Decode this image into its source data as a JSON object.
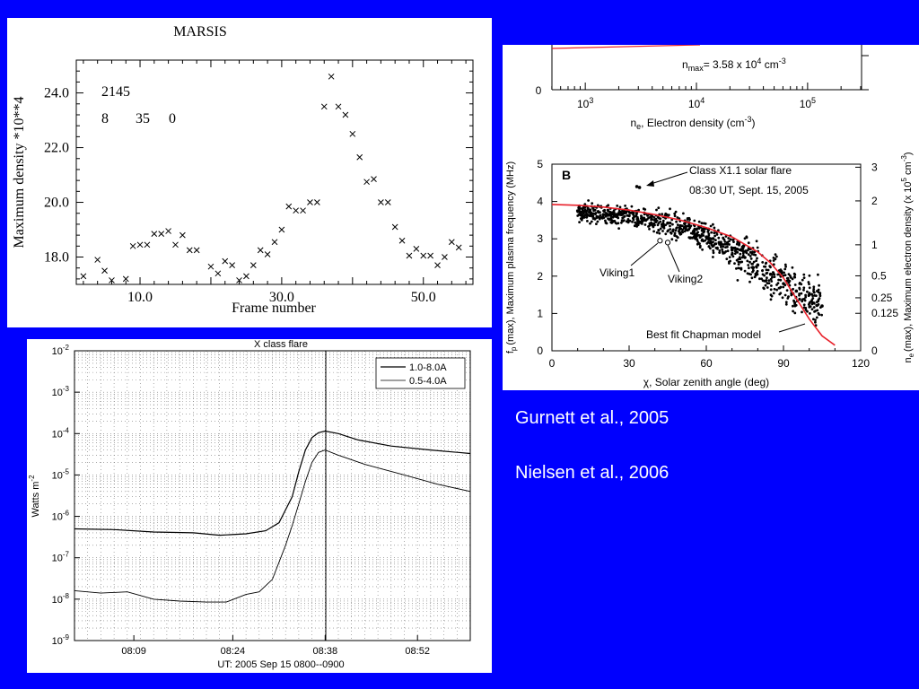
{
  "captions": [
    "Gurnett et al., 2005",
    "Nielsen et al., 2006"
  ],
  "marsis": {
    "info_line1": "2145",
    "info_line2a": "8",
    "info_line2b": "35",
    "info_line2c": "0",
    "x_ticks": [
      "10.0",
      "30.0",
      "50.0"
    ],
    "y_ticks": [
      "18.0",
      "20.0",
      "22.0",
      "24.0"
    ]
  },
  "goes": {
    "y_exponents": [
      "-9",
      "-8",
      "-7",
      "-6",
      "-5",
      "-4",
      "-3",
      "-2"
    ],
    "y_base": "10",
    "ylabel_base": "Watts m",
    "ylabel_exp": "-2",
    "x_ticks": [
      "08:09",
      "08:24",
      "08:38",
      "08:52"
    ]
  },
  "panel_b": {
    "top_note": "n",
    "top_note_sub": "max",
    "top_note_value": "= 3.58 x 10",
    "top_note_exp": "4",
    "top_note_unit": " cm",
    "top_note_unit_exp": "-3",
    "top_zero": "0",
    "top_xticks": [
      "10",
      "10",
      "10"
    ],
    "top_xtick_exps": [
      "3",
      "4",
      "5"
    ],
    "top_xlabel_n": "n",
    "top_xlabel_sub": "e",
    "top_xlabel_rest": ", Electron density (cm",
    "top_xlabel_exp": "-3",
    "top_xlabel_end": ")",
    "label": "B",
    "x_ticks": [
      "0",
      "30",
      "60",
      "90",
      "120"
    ],
    "y_ticks": [
      "0",
      "1",
      "2",
      "3",
      "4",
      "5"
    ],
    "y2_ticks": [
      "0",
      "0.125",
      "0.25",
      "0.5",
      "1",
      "2",
      "3"
    ],
    "xlabel": "χ, Solar zenith angle (deg)",
    "ylabel": "f (max), Maximum plasma frequency (MHz)",
    "ylabel_f": "f",
    "ylabel_sub": "p",
    "ylabel_rest": "(max), Maximum plasma frequency (MHz)",
    "y2label_n": "n",
    "y2label_sub": "e",
    "y2label_rest": "(max), Maximum electron density (x 10",
    "y2label_exp": "5",
    "y2label_unit": " cm",
    "y2label_unit_exp": "-3",
    "y2label_end": ")",
    "annotation_flare_1": "Class X1.1 solar flare",
    "annotation_flare_2": "08:30 UT,  Sept. 15, 2005",
    "annotation_viking1": "Viking1",
    "annotation_viking2": "Viking2",
    "annotation_model": "Best fit Chapman model"
  },
  "chart_data": [
    {
      "type": "scatter",
      "title": "MARSIS",
      "xlabel": "Frame number",
      "ylabel": "Maximum density *10**4",
      "xlim": [
        1,
        57
      ],
      "ylim": [
        17.0,
        25.2
      ],
      "marker": "x",
      "x": [
        2,
        4,
        5,
        6,
        8,
        9,
        10,
        11,
        12,
        13,
        14,
        15,
        16,
        17,
        18,
        20,
        21,
        22,
        23,
        24,
        25,
        26,
        27,
        28,
        29,
        30,
        31,
        32,
        33,
        34,
        35,
        36,
        37,
        38,
        39,
        40,
        41,
        42,
        43,
        44,
        45,
        46,
        47,
        48,
        49,
        50,
        51,
        52,
        53,
        54,
        55
      ],
      "y": [
        17.3,
        17.9,
        17.5,
        17.15,
        17.2,
        18.4,
        18.45,
        18.45,
        18.85,
        18.85,
        18.95,
        18.45,
        18.8,
        18.25,
        18.25,
        17.65,
        17.4,
        17.85,
        17.7,
        17.15,
        17.3,
        17.7,
        18.25,
        18.1,
        18.55,
        19.0,
        19.85,
        19.7,
        19.7,
        20.0,
        20.0,
        23.5,
        24.6,
        23.5,
        23.2,
        22.5,
        21.65,
        20.75,
        20.85,
        20.0,
        20.0,
        19.1,
        18.6,
        18.05,
        18.3,
        18.05,
        18.05,
        17.7,
        18.0,
        18.55,
        18.35
      ]
    },
    {
      "type": "line",
      "title": "X class flare",
      "xlabel": "UT: 2005 Sep 15 0800--0900",
      "ylabel": "Watts m-2",
      "y_scale": "log",
      "ylim": [
        1e-09,
        0.01
      ],
      "xlim": [
        "08:00",
        "09:00"
      ],
      "grid": true,
      "legend": "top-right",
      "vertical_marker": "08:38",
      "series": [
        {
          "name": "1.0-8.0A",
          "x": [
            "08:00",
            "08:06",
            "08:12",
            "08:18",
            "08:22",
            "08:26",
            "08:29",
            "08:31",
            "08:33",
            "08:34",
            "08:35",
            "08:36",
            "08:37",
            "08:38",
            "08:40",
            "08:43",
            "08:48",
            "08:54",
            "09:00"
          ],
          "y": [
            5e-07,
            4.8e-07,
            4.2e-07,
            4e-07,
            3.5e-07,
            3.8e-07,
            4.5e-07,
            7e-07,
            3e-06,
            1.2e-05,
            4e-05,
            8e-05,
            0.000105,
            0.000115,
            0.0001,
            7e-05,
            5e-05,
            4e-05,
            3.3e-05
          ]
        },
        {
          "name": "0.5-4.0A",
          "x": [
            "08:00",
            "08:04",
            "08:08",
            "08:12",
            "08:16",
            "08:20",
            "08:23",
            "08:26",
            "08:28",
            "08:30",
            "08:32",
            "08:33",
            "08:34",
            "08:35",
            "08:36",
            "08:37",
            "08:38",
            "08:40",
            "08:44",
            "08:50",
            "08:55",
            "09:00"
          ],
          "y": [
            1.6e-08,
            1.4e-08,
            1.5e-08,
            1e-08,
            9e-09,
            8.5e-09,
            8.5e-09,
            1.3e-08,
            1.5e-08,
            3e-08,
            2e-07,
            6e-07,
            2e-06,
            7e-06,
            2e-05,
            3.5e-05,
            4e-05,
            3e-05,
            1.8e-05,
            1e-05,
            6e-06,
            4e-06
          ]
        }
      ]
    },
    {
      "type": "scatter",
      "title": "",
      "xlabel": "χ, Solar zenith angle (deg)",
      "ylabel": "f (max), Maximum plasma frequency (MHz)",
      "xlim": [
        0,
        120
      ],
      "ylim": [
        0,
        5
      ],
      "series": [
        {
          "name": "",
          "x": [
            10,
            15,
            20,
            25,
            30,
            35,
            40,
            45,
            50,
            55,
            60,
            65,
            70,
            75,
            80,
            85,
            90,
            95,
            100,
            105
          ],
          "y": [
            3.75,
            3.7,
            3.65,
            3.6,
            3.62,
            3.55,
            3.5,
            3.42,
            3.35,
            3.2,
            3.05,
            2.9,
            2.7,
            2.5,
            2.3,
            2.05,
            1.8,
            1.6,
            1.5,
            1.2
          ]
        },
        {
          "name": "Viking1",
          "x": [
            42
          ],
          "y": [
            2.95
          ]
        },
        {
          "name": "Viking2",
          "x": [
            45
          ],
          "y": [
            2.9
          ]
        },
        {
          "name": "Class X1.1 solar flare",
          "x": [
            33
          ],
          "y": [
            4.4
          ]
        },
        {
          "name": "Best fit Chapman model",
          "x": [
            0,
            10,
            20,
            30,
            40,
            50,
            60,
            70,
            80,
            85,
            90,
            95,
            100,
            105,
            110
          ],
          "y": [
            3.92,
            3.9,
            3.85,
            3.77,
            3.65,
            3.5,
            3.3,
            3.05,
            2.65,
            2.35,
            1.95,
            1.4,
            0.85,
            0.4,
            0.15
          ]
        }
      ]
    }
  ]
}
